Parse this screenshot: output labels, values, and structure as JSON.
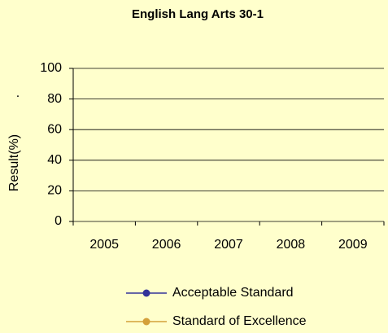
{
  "chart_data": {
    "type": "line",
    "title": "English Lang Arts 30-1",
    "ylabel": "Result(%)",
    "annotation": ".",
    "categories": [
      "2005",
      "2006",
      "2007",
      "2008",
      "2009"
    ],
    "series": [
      {
        "name": "Acceptable Standard",
        "color": "#333399",
        "values": [
          null,
          null,
          null,
          null,
          null
        ]
      },
      {
        "name": "Standard of Excellence",
        "color": "#d4a03a",
        "values": [
          null,
          null,
          null,
          null,
          null
        ]
      }
    ],
    "ylim": [
      0,
      100
    ],
    "yticks": [
      0,
      20,
      40,
      60,
      80,
      100
    ],
    "grid": true,
    "legend": "bottom"
  }
}
